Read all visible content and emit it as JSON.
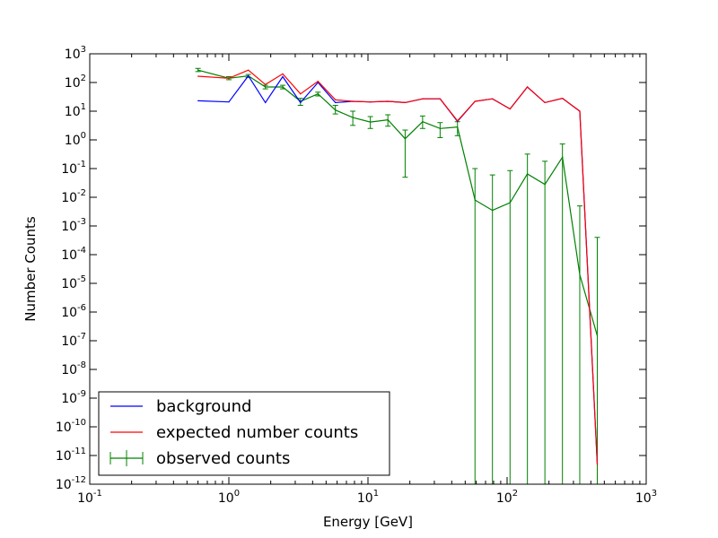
{
  "chart_data": {
    "type": "line",
    "title": "",
    "xlabel": "Energy [GeV]",
    "ylabel": "Number Counts",
    "xscale": "log",
    "yscale": "log",
    "xlim": [
      0.1,
      1000
    ],
    "ylim": [
      1e-12,
      1000
    ],
    "grid": false,
    "legend_position": "lower-left",
    "x_ticks": [
      {
        "base": "10",
        "exp": "-1"
      },
      {
        "base": "10",
        "exp": "0"
      },
      {
        "base": "10",
        "exp": "1"
      },
      {
        "base": "10",
        "exp": "2"
      },
      {
        "base": "10",
        "exp": "3"
      }
    ],
    "y_ticks": [
      {
        "base": "10",
        "exp": "-12"
      },
      {
        "base": "10",
        "exp": "-11"
      },
      {
        "base": "10",
        "exp": "-10"
      },
      {
        "base": "10",
        "exp": "-9"
      },
      {
        "base": "10",
        "exp": "-8"
      },
      {
        "base": "10",
        "exp": "-7"
      },
      {
        "base": "10",
        "exp": "-6"
      },
      {
        "base": "10",
        "exp": "-5"
      },
      {
        "base": "10",
        "exp": "-4"
      },
      {
        "base": "10",
        "exp": "-3"
      },
      {
        "base": "10",
        "exp": "-2"
      },
      {
        "base": "10",
        "exp": "-1"
      },
      {
        "base": "10",
        "exp": "0"
      },
      {
        "base": "10",
        "exp": "1"
      },
      {
        "base": "10",
        "exp": "2"
      },
      {
        "base": "10",
        "exp": "3"
      }
    ],
    "x": [
      0.6,
      1.0,
      1.38,
      1.83,
      2.44,
      3.27,
      4.37,
      5.83,
      7.78,
      10.4,
      13.9,
      18.5,
      24.7,
      33.0,
      44.0,
      58.8,
      78.5,
      105,
      140,
      187,
      250,
      333,
      445
    ],
    "series": [
      {
        "name": "background",
        "color": "#0000ff",
        "values": [
          23,
          21,
          170,
          20,
          160,
          20,
          100,
          20,
          22,
          21,
          22,
          20,
          27,
          27,
          4.4,
          22,
          27,
          12,
          70,
          20,
          28,
          10,
          5e-12
        ]
      },
      {
        "name": "expected number counts",
        "color": "#ff0000",
        "values": [
          165,
          140,
          270,
          85,
          200,
          40,
          110,
          25,
          22,
          21,
          22,
          20,
          27,
          27,
          4.6,
          22,
          27,
          12,
          70,
          20,
          28,
          10,
          5e-12
        ]
      },
      {
        "name": "observed counts",
        "color": "#008000",
        "values": [
          270,
          140,
          170,
          70,
          70,
          22,
          40,
          11,
          6,
          4.2,
          5,
          1.1,
          4.3,
          2.5,
          2.8,
          0.008,
          0.0035,
          0.0065,
          0.065,
          0.028,
          0.25,
          2e-05,
          1.5e-07
        ],
        "error_upper": [
          310,
          160,
          190,
          80,
          80,
          28,
          46,
          16,
          10,
          6.5,
          7.5,
          2.2,
          6.8,
          4,
          4.3,
          0.1,
          0.06,
          0.085,
          0.32,
          0.18,
          0.72,
          0.005,
          0.0004
        ],
        "error_lower": [
          240,
          125,
          150,
          60,
          60,
          16,
          34,
          8,
          3.2,
          2.5,
          3,
          0.05,
          2.5,
          1.2,
          1.4,
          1e-12,
          1e-12,
          1e-12,
          1e-12,
          1e-12,
          1e-12,
          1e-12,
          1e-12
        ]
      }
    ]
  }
}
